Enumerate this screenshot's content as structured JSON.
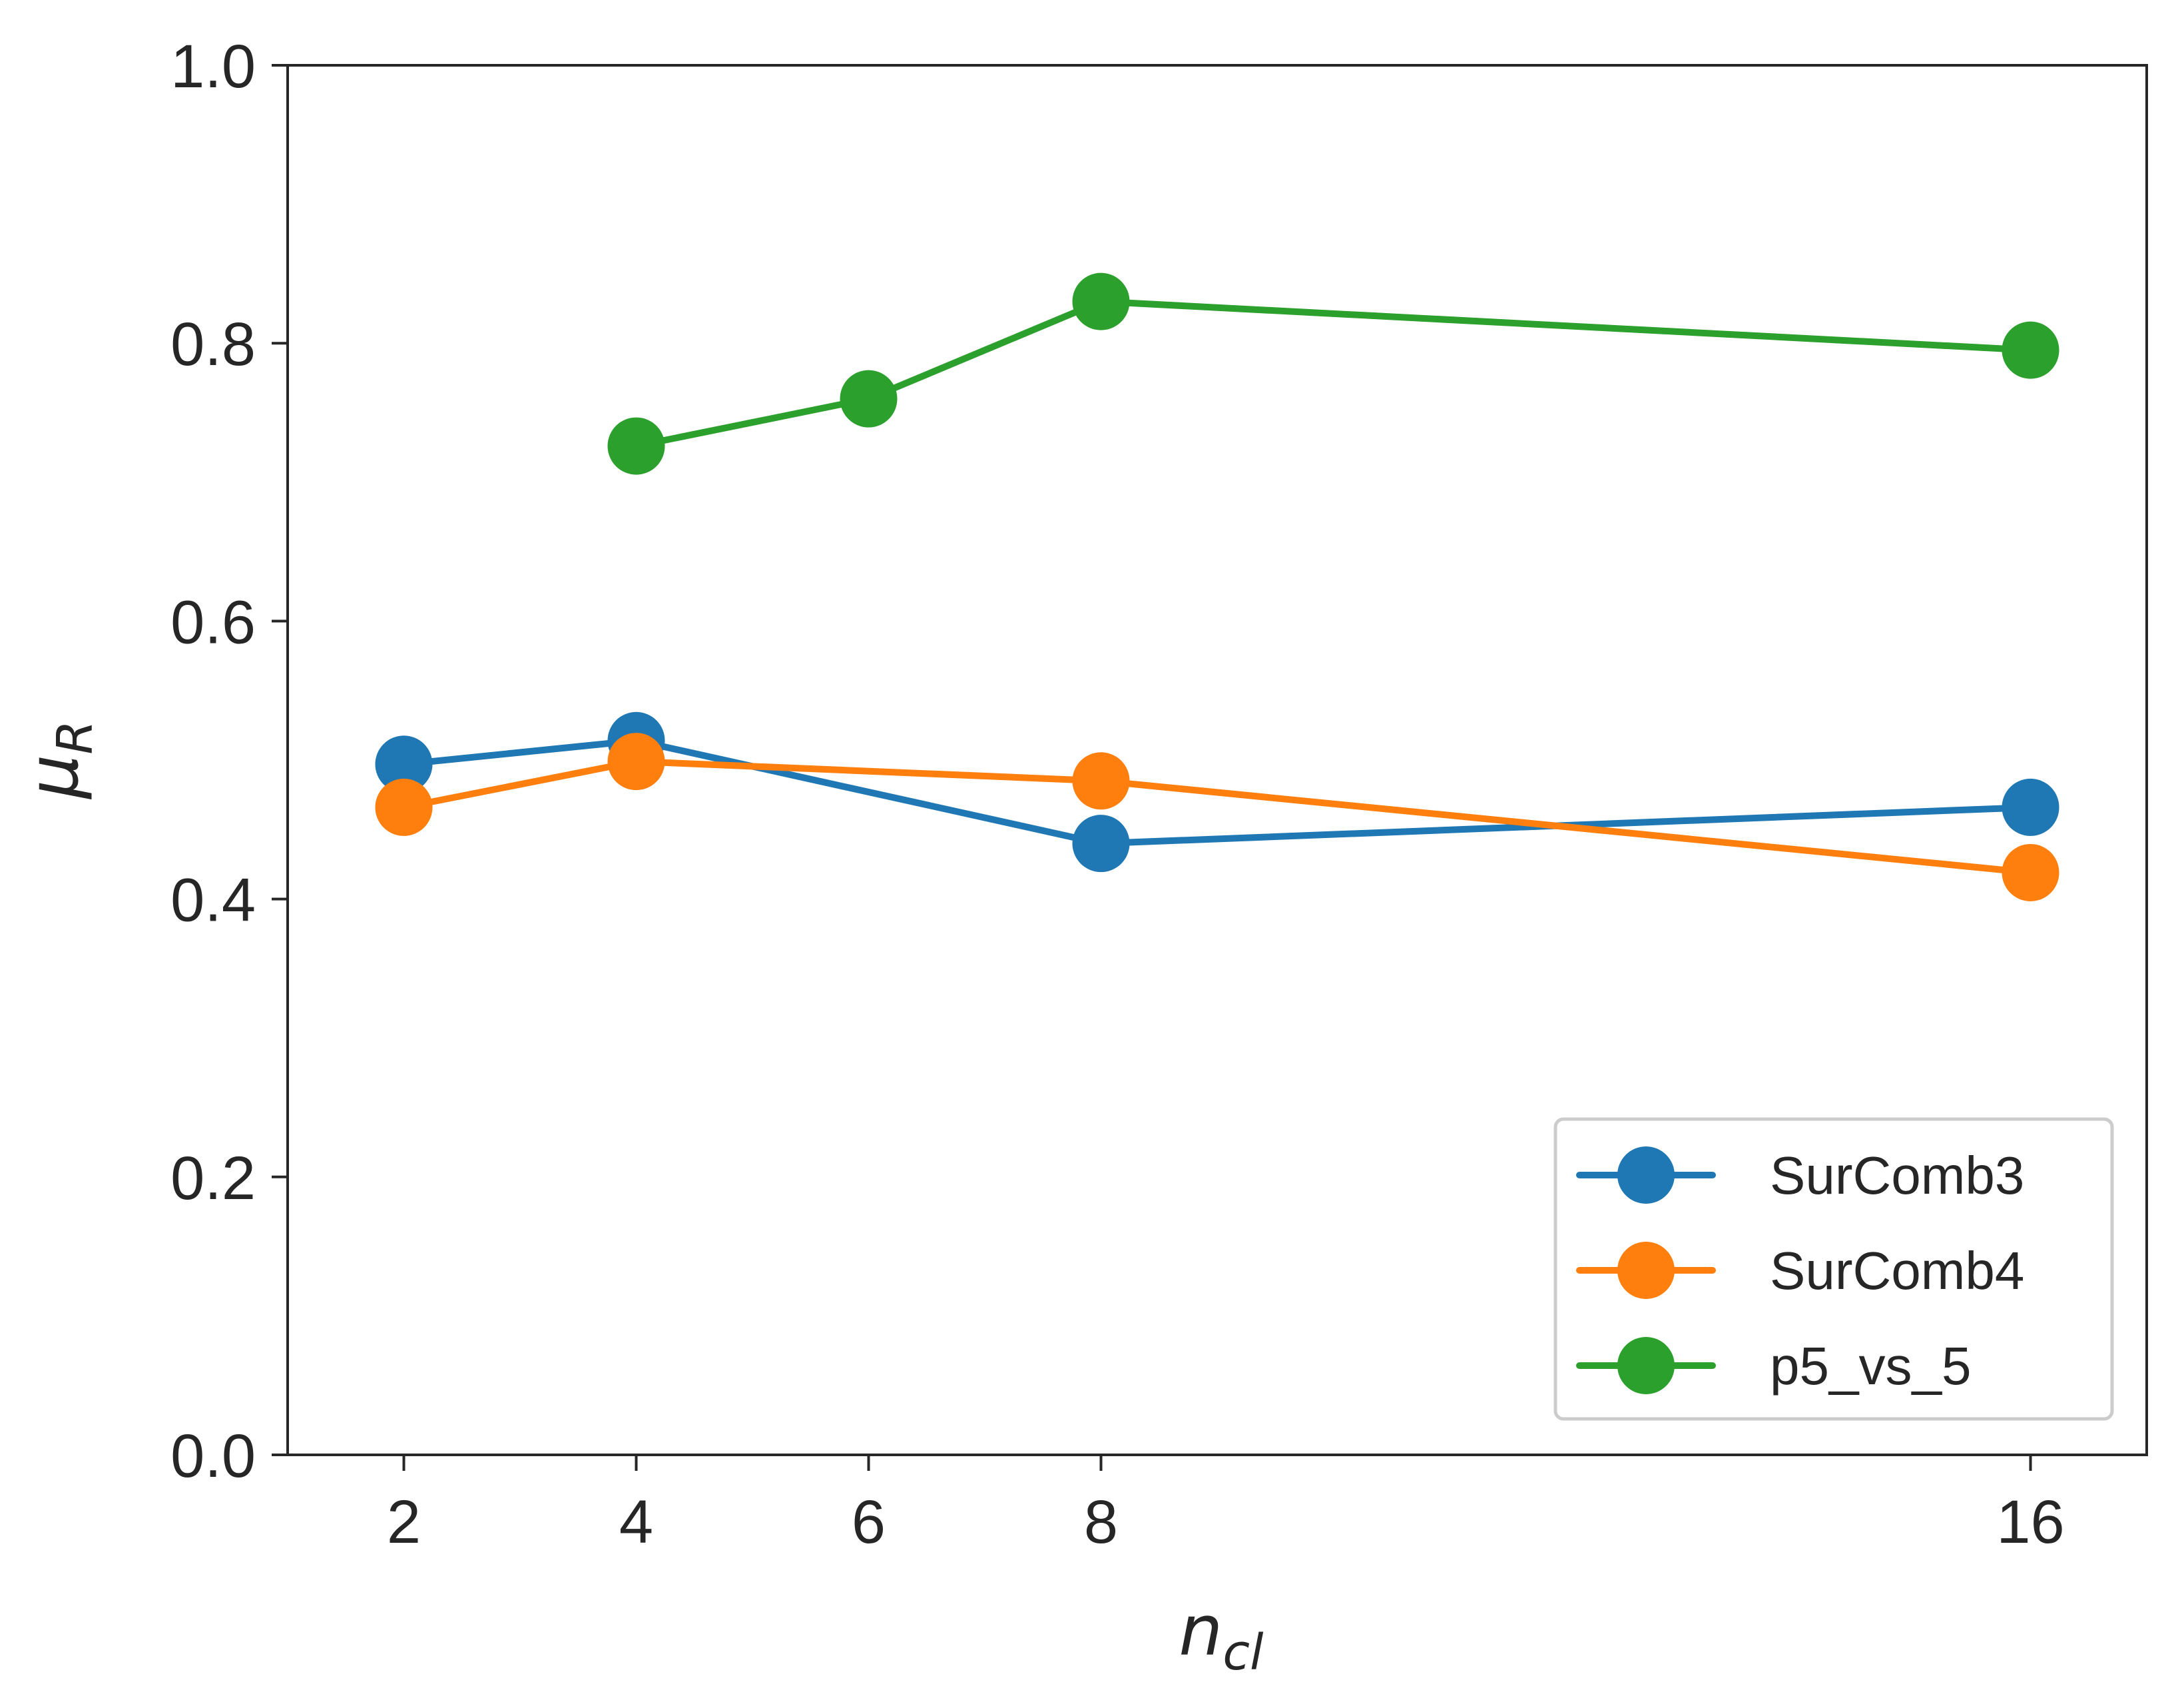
{
  "chart_data": {
    "type": "line",
    "title": "",
    "xlabel": {
      "main": "n",
      "sub": "cl"
    },
    "ylabel": {
      "main": "μ",
      "sub": "R",
      "accent": "¯"
    },
    "xlim": [
      1,
      17
    ],
    "ylim": [
      0.0,
      1.0
    ],
    "xticks": [
      2,
      4,
      6,
      8,
      16
    ],
    "xtick_labels": [
      "2",
      "4",
      "6",
      "8",
      "16"
    ],
    "yticks": [
      0.0,
      0.2,
      0.4,
      0.6,
      0.8,
      1.0
    ],
    "ytick_labels": [
      "0.0",
      "0.2",
      "0.4",
      "0.6",
      "0.8",
      "1.0"
    ],
    "grid": false,
    "legend_position": "bottom-right",
    "series": [
      {
        "name": "SurComb3",
        "color": "#1f77b4",
        "x": [
          2,
          4,
          8,
          16
        ],
        "y": [
          0.497,
          0.514,
          0.44,
          0.466
        ]
      },
      {
        "name": "SurComb4",
        "color": "#ff7f0e",
        "x": [
          2,
          4,
          8,
          16
        ],
        "y": [
          0.466,
          0.499,
          0.485,
          0.419
        ]
      },
      {
        "name": "p5_vs_5",
        "color": "#2ca02c",
        "x": [
          4,
          6,
          8,
          16
        ],
        "y": [
          0.726,
          0.76,
          0.83,
          0.795
        ]
      }
    ]
  }
}
